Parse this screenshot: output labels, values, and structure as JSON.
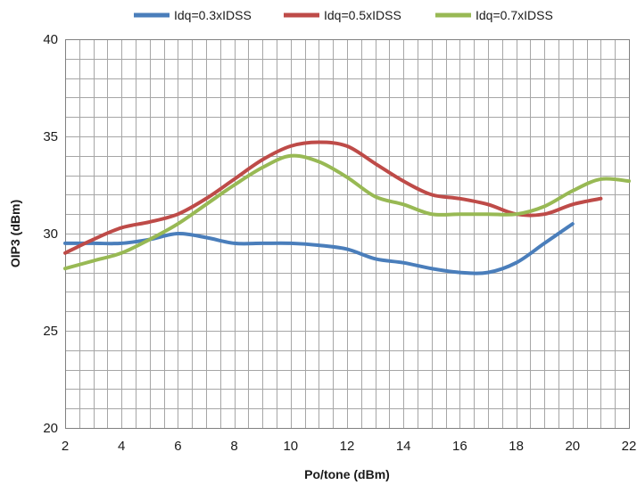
{
  "chart_data": {
    "type": "line",
    "title": "",
    "xlabel": "Po/tone (dBm)",
    "ylabel": "OIP3 (dBm)",
    "xlim": [
      2,
      22
    ],
    "ylim": [
      20,
      40
    ],
    "x_major_ticks": [
      2,
      4,
      6,
      8,
      10,
      12,
      14,
      16,
      18,
      20,
      22
    ],
    "y_major_ticks": [
      20,
      25,
      30,
      35,
      40
    ],
    "x_minor_step": 0.5,
    "y_minor_step": 1,
    "grid": true,
    "legend_position": "top",
    "series": [
      {
        "name": "Idq=0.3xIDSS",
        "color": "#4a7ebb",
        "x": [
          2,
          3,
          4,
          5,
          6,
          7,
          8,
          9,
          10,
          11,
          12,
          13,
          14,
          15,
          16,
          17,
          18,
          19,
          20
        ],
        "y": [
          29.5,
          29.5,
          29.5,
          29.7,
          30.0,
          29.8,
          29.5,
          29.5,
          29.5,
          29.4,
          29.2,
          28.7,
          28.5,
          28.2,
          28.0,
          28.0,
          28.5,
          29.5,
          30.5
        ]
      },
      {
        "name": "Idq=0.5xIDSS",
        "color": "#be4b48",
        "x": [
          2,
          3,
          4,
          5,
          6,
          7,
          8,
          9,
          10,
          11,
          12,
          13,
          14,
          15,
          16,
          17,
          18,
          19,
          20,
          21
        ],
        "y": [
          29.0,
          29.7,
          30.3,
          30.6,
          31.0,
          31.8,
          32.8,
          33.8,
          34.5,
          34.7,
          34.5,
          33.6,
          32.7,
          32.0,
          31.8,
          31.5,
          31.0,
          31.0,
          31.5,
          31.8
        ]
      },
      {
        "name": "Idq=0.7xIDSS",
        "color": "#98b954",
        "x": [
          2,
          3,
          4,
          5,
          6,
          7,
          8,
          9,
          10,
          11,
          12,
          13,
          14,
          15,
          16,
          17,
          18,
          19,
          20,
          21,
          22
        ],
        "y": [
          28.2,
          28.6,
          29.0,
          29.7,
          30.5,
          31.5,
          32.5,
          33.4,
          34.0,
          33.7,
          32.9,
          31.9,
          31.5,
          31.0,
          31.0,
          31.0,
          31.0,
          31.4,
          32.2,
          32.8,
          32.7
        ]
      }
    ]
  }
}
